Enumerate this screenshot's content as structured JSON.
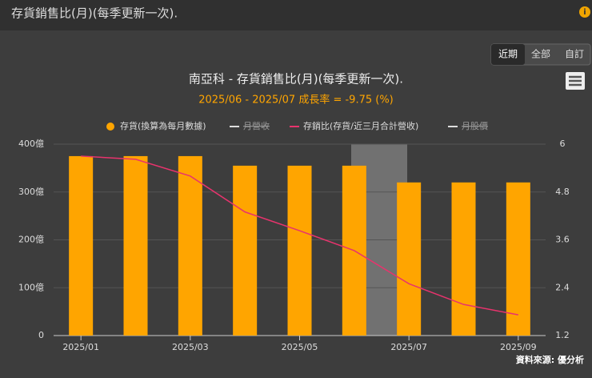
{
  "header": {
    "title": "存貨銷售比(月)(每季更新一次).",
    "info": "i"
  },
  "buttons": [
    "近期",
    "全部",
    "自訂"
  ],
  "source": "資料來源: 優分析",
  "chart_data": {
    "type": "combo",
    "title": "南亞科 - 存貨銷售比(月)(每季更新一次).",
    "subtitle": "2025/06 - 2025/07 成長率 = -9.75 (%)",
    "categories": [
      "2025/01",
      null,
      "2025/03",
      null,
      "2025/05",
      null,
      "2025/07",
      null,
      "2025/09"
    ],
    "series": [
      {
        "name": "存貨(換算為每月數據)",
        "type": "bar",
        "color": "#ffa500",
        "axis": "y",
        "values": [
          375,
          375,
          375,
          355,
          355,
          355,
          320,
          320,
          320
        ]
      },
      {
        "name": "月營收",
        "type": "line",
        "color": "#dddddd",
        "visible": false
      },
      {
        "name": "存銷比(存貨/近三月合計營收)",
        "type": "line",
        "color": "#e8336d",
        "axis": "y2",
        "values": [
          5.7,
          5.62,
          5.2,
          4.3,
          3.83,
          3.33,
          2.5,
          1.98,
          1.72
        ]
      },
      {
        "name": "月股價",
        "type": "line",
        "color": "#dddddd",
        "visible": false
      }
    ],
    "ylim": [
      0,
      400
    ],
    "yticks": [
      0,
      {
        "value": 100,
        "label": "100億"
      },
      {
        "value": 200,
        "label": "200億"
      },
      {
        "value": 300,
        "label": "300億"
      },
      {
        "value": 400,
        "label": "400億"
      }
    ],
    "y2lim": [
      1.2,
      6
    ],
    "y2ticks": [
      1.2,
      2.4,
      3.6,
      4.8,
      6
    ],
    "grid": true
  }
}
